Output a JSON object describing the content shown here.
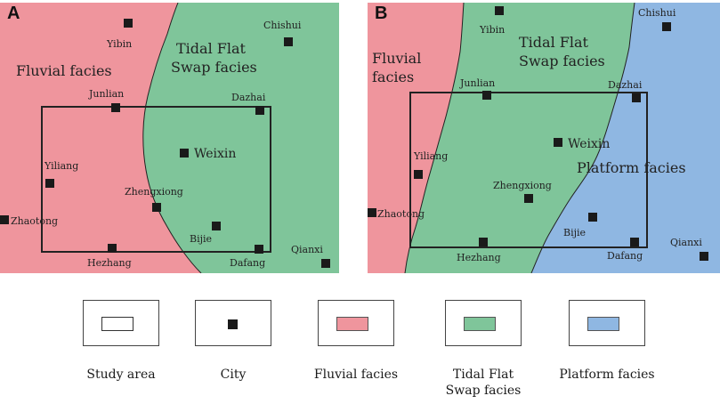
{
  "colors": {
    "fluvial": "#ef959d",
    "tidal": "#7fc59a",
    "platform": "#8fb7e2",
    "city": "#1a1a1a",
    "outline": "#222222"
  },
  "panels": [
    {
      "id": "A",
      "letter": "A",
      "facies_labels": [
        {
          "key": "fluvial",
          "lines": [
            "Fluvial  facies"
          ]
        },
        {
          "key": "tidal",
          "lines": [
            "Tidal Flat",
            "Swap facies"
          ]
        }
      ],
      "cities": [
        {
          "name": "Yibin"
        },
        {
          "name": "Chishui"
        },
        {
          "name": "Junlian"
        },
        {
          "name": "Dazhai"
        },
        {
          "name": "Weixin"
        },
        {
          "name": "Yiliang"
        },
        {
          "name": "Zhengxiong"
        },
        {
          "name": "Zhaotong"
        },
        {
          "name": "Bijie"
        },
        {
          "name": "Hezhang"
        },
        {
          "name": "Dafang"
        },
        {
          "name": "Qianxi"
        }
      ]
    },
    {
      "id": "B",
      "letter": "B",
      "facies_labels": [
        {
          "key": "fluvial",
          "lines": [
            "Fluvial",
            "facies"
          ]
        },
        {
          "key": "tidal",
          "lines": [
            "Tidal Flat",
            "Swap facies"
          ]
        },
        {
          "key": "platform",
          "lines": [
            "Platform facies"
          ]
        }
      ],
      "cities": [
        {
          "name": "Yibin"
        },
        {
          "name": "Chishui"
        },
        {
          "name": "Junlian"
        },
        {
          "name": "Dazhai"
        },
        {
          "name": "Weixin"
        },
        {
          "name": "Yiliang"
        },
        {
          "name": "Zhengxiong"
        },
        {
          "name": "Zhaotong"
        },
        {
          "name": "Bijie"
        },
        {
          "name": "Hezhang"
        },
        {
          "name": "Dafang"
        },
        {
          "name": "Qianxi"
        }
      ]
    }
  ],
  "legend": {
    "study_area": "Study area",
    "city": "City",
    "fluvial": "Fluvial  facies",
    "tidal_line1": "Tidal Flat",
    "tidal_line2": "Swap facies",
    "platform": "Platform facies"
  }
}
